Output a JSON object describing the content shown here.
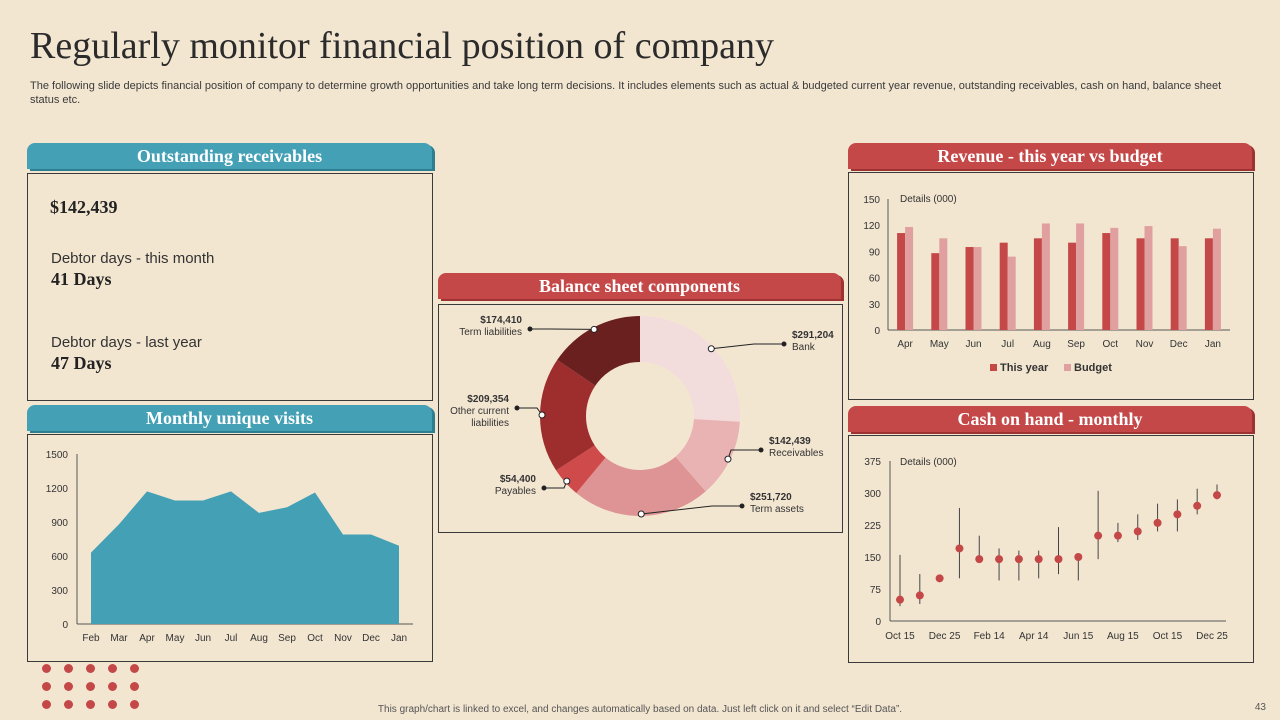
{
  "title": "Regularly monitor financial position of company",
  "subtitle": "The following slide depicts financial position of company to determine growth opportunities and take long term decisions. It includes elements such as actual & budgeted current year revenue, outstanding receivables, cash on hand, balance sheet status etc.",
  "receivables": {
    "header": "Outstanding receivables",
    "amount": "$142,439",
    "this_month_label": "Debtor days - this month",
    "this_month_value": "41 Days",
    "last_year_label": "Debtor days - last year",
    "last_year_value": "47 Days"
  },
  "visits": {
    "header": "Monthly unique visits"
  },
  "balance": {
    "header": "Balance sheet components"
  },
  "revenue": {
    "header": "Revenue - this year vs budget"
  },
  "cash": {
    "header": "Cash on hand - monthly"
  },
  "colors": {
    "teal": "#44A0B5",
    "red": "#C54848",
    "this_year": "#C54848",
    "budget": "#E1A0A0"
  },
  "chart_data": [
    {
      "id": "visits",
      "type": "area",
      "categories": [
        "Feb",
        "Mar",
        "Apr",
        "May",
        "Jun",
        "Jul",
        "Aug",
        "Sep",
        "Oct",
        "Nov",
        "Dec",
        "Jan"
      ],
      "values": [
        630,
        880,
        1170,
        1090,
        1090,
        1170,
        980,
        1030,
        1160,
        790,
        790,
        690
      ],
      "ylim": [
        0,
        1500
      ],
      "yticks": [
        0,
        300,
        600,
        900,
        1200,
        1500
      ],
      "color": "#44A0B5"
    },
    {
      "id": "balance",
      "type": "pie",
      "slices": [
        {
          "label": "Bank",
          "value_label": "$291,204",
          "value": 291204,
          "color": "#F3DCDC"
        },
        {
          "label": "Receivables",
          "value_label": "$142,439",
          "value": 142439,
          "color": "#E9B3B3"
        },
        {
          "label": "Term assets",
          "value_label": "$251,720",
          "value": 251720,
          "color": "#DE9494"
        },
        {
          "label": "Payables",
          "value_label": "$54,400",
          "value": 54400,
          "color": "#CF4A4A"
        },
        {
          "label": "Other current liabilities",
          "value_label": "$209,354",
          "value": 209354,
          "color": "#9E2E2E"
        },
        {
          "label": "Term liabilities",
          "value_label": "$174,410",
          "value": 174410,
          "color": "#6B2020"
        }
      ]
    },
    {
      "id": "revenue",
      "type": "bar",
      "annotation": "Details (000)",
      "categories": [
        "Apr",
        "May",
        "Jun",
        "Jul",
        "Aug",
        "Sep",
        "Oct",
        "Nov",
        "Dec",
        "Jan"
      ],
      "series": [
        {
          "name": "This year",
          "values": [
            111,
            88,
            95,
            100,
            105,
            100,
            111,
            105,
            105,
            105
          ]
        },
        {
          "name": "Budget",
          "values": [
            118,
            105,
            95,
            84,
            122,
            122,
            117,
            119,
            96,
            116
          ]
        }
      ],
      "ylim": [
        0,
        150
      ],
      "yticks": [
        0,
        30,
        60,
        90,
        120,
        150
      ]
    },
    {
      "id": "cash",
      "type": "scatter",
      "annotation": "Details (000)",
      "xticks": [
        "Oct 15",
        "Dec 25",
        "Feb 14",
        "Apr 14",
        "Jun 15",
        "Aug 15",
        "Oct 15",
        "Dec 25"
      ],
      "points": [
        {
          "y": 50,
          "low": 35,
          "high": 155
        },
        {
          "y": 60,
          "low": 40,
          "high": 110
        },
        {
          "y": 100,
          "low": 100,
          "high": 100
        },
        {
          "y": 170,
          "low": 100,
          "high": 265
        },
        {
          "y": 145,
          "low": 140,
          "high": 200
        },
        {
          "y": 145,
          "low": 95,
          "high": 170
        },
        {
          "y": 145,
          "low": 95,
          "high": 165
        },
        {
          "y": 145,
          "low": 100,
          "high": 165
        },
        {
          "y": 145,
          "low": 110,
          "high": 220
        },
        {
          "y": 150,
          "low": 95,
          "high": 155
        },
        {
          "y": 200,
          "low": 145,
          "high": 305
        },
        {
          "y": 200,
          "low": 185,
          "high": 230
        },
        {
          "y": 210,
          "low": 190,
          "high": 250
        },
        {
          "y": 230,
          "low": 210,
          "high": 275
        },
        {
          "y": 250,
          "low": 210,
          "high": 285
        },
        {
          "y": 270,
          "low": 250,
          "high": 310
        },
        {
          "y": 295,
          "low": 285,
          "high": 320
        }
      ],
      "ylim": [
        0,
        375
      ],
      "yticks": [
        0,
        75,
        150,
        225,
        300,
        375
      ]
    }
  ],
  "footer": "This graph/chart is linked to excel, and changes automatically based on data. Just left click on it and select “Edit Data”.",
  "page_number": "43"
}
